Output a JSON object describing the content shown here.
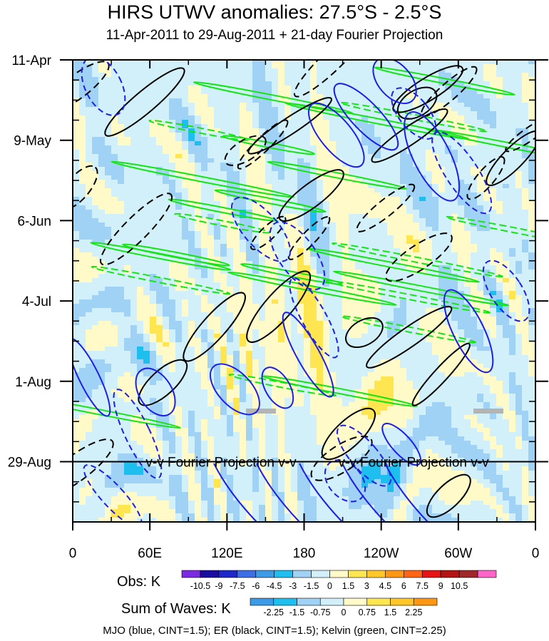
{
  "chart_data": {
    "type": "heatmap",
    "title": "HIRS UTWV anomalies: 27.5°S - 2.5°S",
    "subtitle": "11-Apr-2011 to 29-Aug-2011 + 21-day Fourier Projection",
    "x_ticks": [
      "0",
      "60E",
      "120E",
      "180",
      "120W",
      "60W",
      "0"
    ],
    "x_range": [
      0,
      360
    ],
    "y_ticks": [
      "11-Apr",
      "9-May",
      "6-Jun",
      "4-Jul",
      "1-Aug",
      "29-Aug"
    ],
    "y_range_days": [
      0,
      161
    ],
    "projection_start_day": 140,
    "projection_labels": [
      "v-v Fourier Projection v-v",
      "v-v Fourier Projection v-v"
    ],
    "obs_colorbar": {
      "title": "Obs: K",
      "colors": [
        "#7a2be2",
        "#1a0ca0",
        "#1e28c8",
        "#3c6ee6",
        "#3c9be6",
        "#1ebeef",
        "#a0d2f5",
        "#d2f0fa",
        "#fffac8",
        "#ffe650",
        "#ffc828",
        "#ff9614",
        "#ff6414",
        "#e61414",
        "#b41414",
        "#a02828",
        "#ff64c8"
      ],
      "labels": [
        "-10.5",
        "-9",
        "-7.5",
        "-6",
        "-4.5",
        "-3",
        "-1.5",
        "0",
        "1.5",
        "3",
        "4.5",
        "6",
        "7.5",
        "9",
        "10.5"
      ]
    },
    "waves_colorbar": {
      "title": "Sum of Waves: K",
      "colors": [
        "#3c9be6",
        "#1ebeef",
        "#a0d2f5",
        "#d2f0fa",
        "#fffac8",
        "#ffe650",
        "#ffc828",
        "#ff9614"
      ],
      "labels": [
        "-2.25",
        "-1.5",
        "-0.75",
        "0",
        "0.75",
        "1.5",
        "2.25"
      ]
    },
    "contour_legend": "MJO (blue, CINT=1.5); ER (black, CINT=1.5); Kelvin (green, CINT=2.25)",
    "series": [
      {
        "name": "MJO",
        "color": "#1e1ee6",
        "cint": 1.5
      },
      {
        "name": "ER",
        "color": "#000000",
        "cint": 1.5
      },
      {
        "name": "Kelvin",
        "color": "#14e614",
        "cint": 2.25
      }
    ],
    "missing_color": "#b4b4b4"
  }
}
